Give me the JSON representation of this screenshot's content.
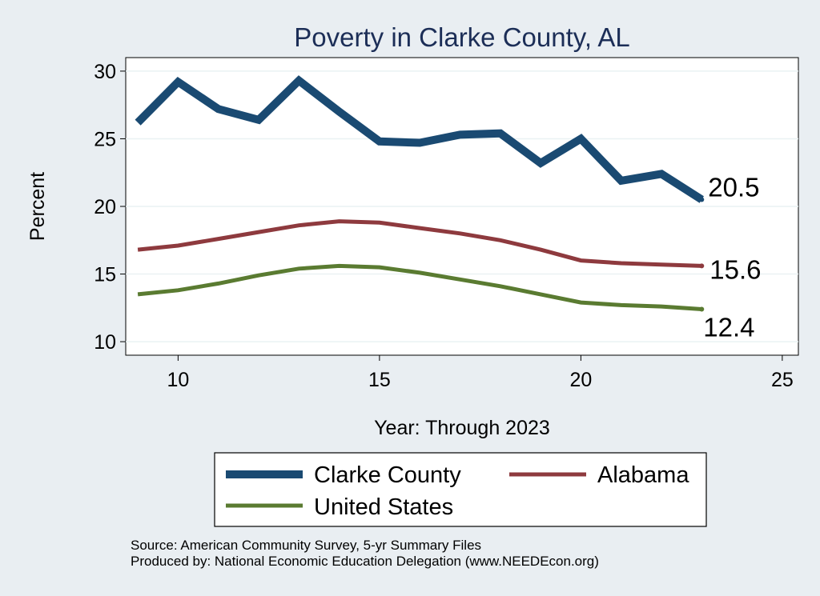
{
  "chart_data": {
    "type": "line",
    "title": "Poverty in Clarke County, AL",
    "xlabel": "Year: Through 2023",
    "ylabel": "Percent",
    "xlim": [
      8.7,
      25.4
    ],
    "ylim": [
      9.0,
      31.0
    ],
    "xticks": [
      10,
      15,
      20,
      25
    ],
    "yticks": [
      10,
      15,
      20,
      25,
      30
    ],
    "x": [
      9,
      10,
      11,
      12,
      13,
      14,
      15,
      16,
      17,
      18,
      19,
      20,
      21,
      22,
      23
    ],
    "series": [
      {
        "name": "Clarke County",
        "color": "#1a4a72",
        "values": [
          26.2,
          29.2,
          27.2,
          26.4,
          29.3,
          27.0,
          24.8,
          24.7,
          25.3,
          25.4,
          23.2,
          25.0,
          21.9,
          22.4,
          20.5
        ],
        "end_label": "20.5"
      },
      {
        "name": "Alabama",
        "color": "#8e3a3e",
        "values": [
          16.8,
          17.1,
          17.6,
          18.1,
          18.6,
          18.9,
          18.8,
          18.4,
          18.0,
          17.5,
          16.8,
          16.0,
          15.8,
          15.7,
          15.6
        ],
        "end_label": "15.6"
      },
      {
        "name": "United States",
        "color": "#5a7b31",
        "values": [
          13.5,
          13.8,
          14.3,
          14.9,
          15.4,
          15.6,
          15.5,
          15.1,
          14.6,
          14.1,
          13.5,
          12.9,
          12.7,
          12.6,
          12.4
        ],
        "end_label": "12.4"
      }
    ],
    "legend": {
      "position": "bottom",
      "entries": [
        "Clarke County",
        "Alabama",
        "United States"
      ]
    },
    "notes": [
      "Source: American Community Survey, 5-yr Summary Files",
      "Produced by: National Economic Education Delegation (www.NEEDEcon.org)"
    ]
  }
}
